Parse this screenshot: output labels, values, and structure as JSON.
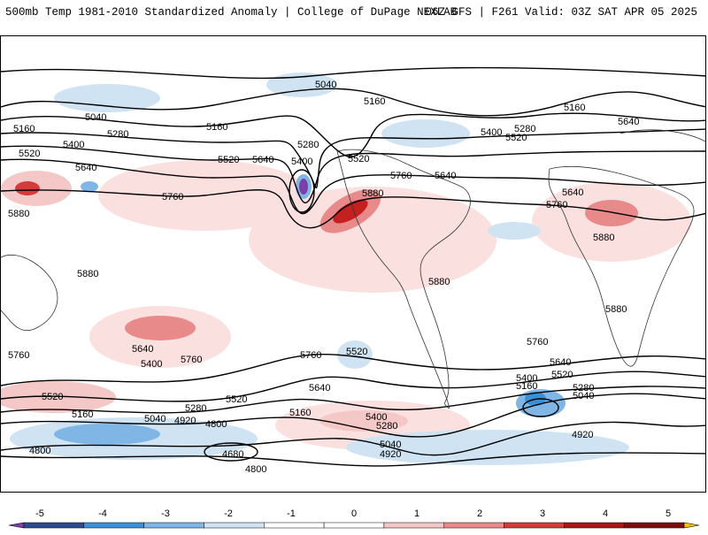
{
  "header": {
    "title": "500mb Temp 1981-2010 Standardized Anomaly | College of DuPage NEXLAB",
    "run_info": "06Z GFS | F261 Valid: 03Z SAT APR 05 2025"
  },
  "colorbar": {
    "ticks": [
      "-5",
      "-4",
      "-3",
      "-2",
      "-1",
      "0",
      "1",
      "2",
      "3",
      "4",
      "5"
    ],
    "colors": [
      "#7b3fa8",
      "#2c4a8c",
      "#3b8fd6",
      "#7fb6e6",
      "#cfe3f3",
      "#ffffff",
      "#ffffff",
      "#f5c8c8",
      "#e88a8a",
      "#d63a3a",
      "#a81818",
      "#7a0d0d",
      "#f2c200"
    ]
  },
  "contour_labels": {
    "c5040": "5040",
    "c5160": "5160",
    "c5280": "5280",
    "c5400": "5400",
    "c5520": "5520",
    "c5640": "5640",
    "c5760": "5760",
    "c5880": "5880",
    "c4920": "4920",
    "c4800": "4800",
    "c4680": "4680"
  }
}
